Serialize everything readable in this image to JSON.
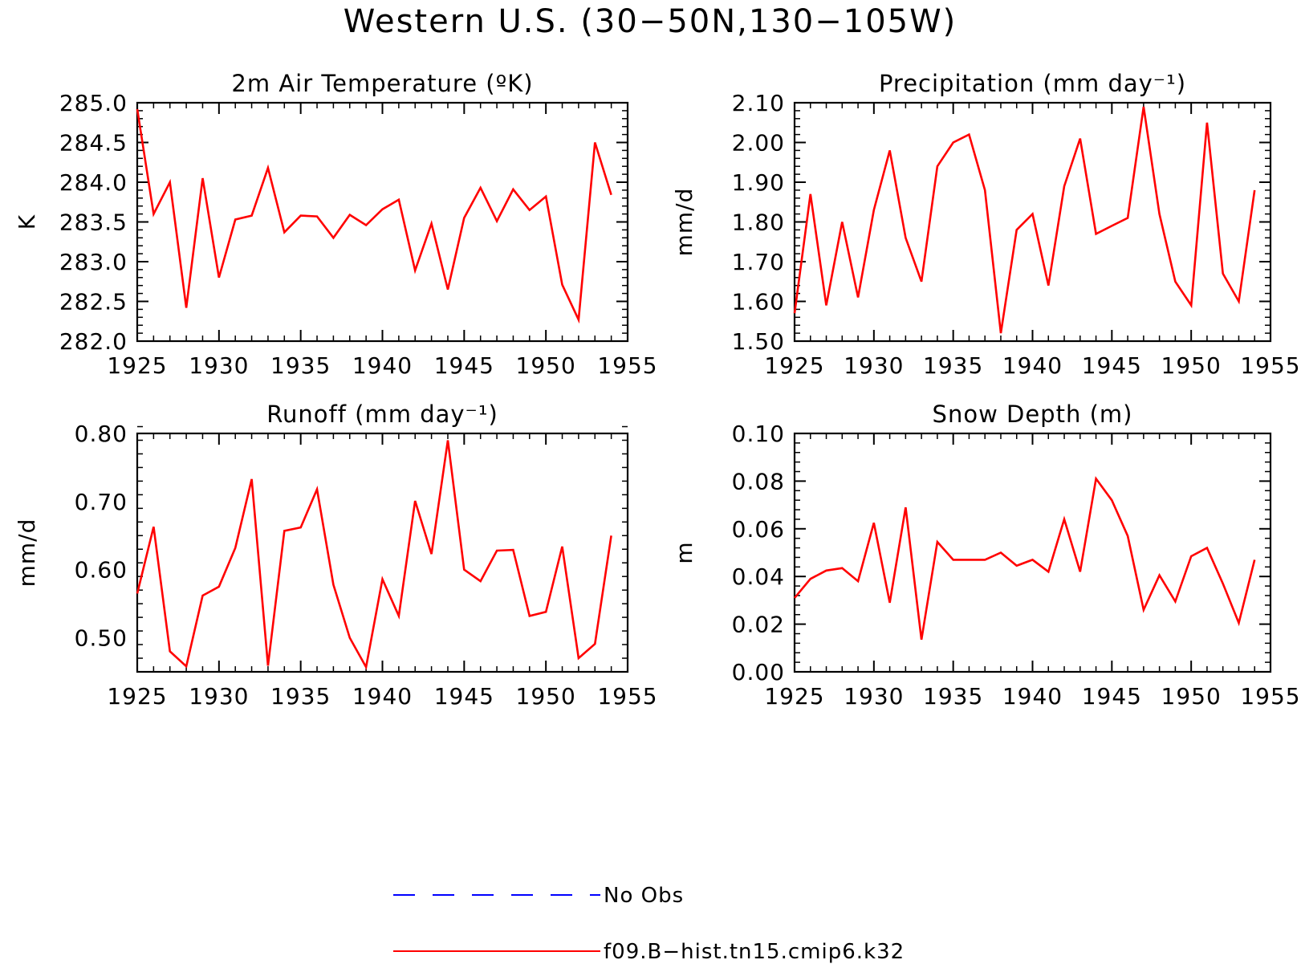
{
  "title": "Western U.S. (30−50N,130−105W)",
  "legend": {
    "entries": [
      {
        "label": "No Obs",
        "color": "#0000ff",
        "style": "dashed"
      },
      {
        "label": "f09.B−hist.tn15.cmip6.k32",
        "color": "#ff0000",
        "style": "solid"
      }
    ]
  },
  "chart_data": [
    {
      "type": "line",
      "title": "2m Air Temperature (ºK)",
      "ylabel": "K",
      "xlim": [
        1925,
        1955
      ],
      "ylim": [
        282.0,
        285.0
      ],
      "xticks": [
        1925,
        1930,
        1935,
        1940,
        1945,
        1950,
        1955
      ],
      "yticks": [
        "282.0",
        "282.5",
        "283.0",
        "283.5",
        "284.0",
        "284.5",
        "285.0"
      ],
      "grid": false,
      "series": [
        {
          "color": "#ff0000",
          "x": [
            1925,
            1926,
            1927,
            1928,
            1929,
            1930,
            1931,
            1932,
            1933,
            1934,
            1935,
            1936,
            1937,
            1938,
            1939,
            1940,
            1941,
            1942,
            1943,
            1944,
            1945,
            1946,
            1947,
            1948,
            1949,
            1950,
            1951,
            1952,
            1953,
            1954
          ],
          "values": [
            284.92,
            283.6,
            284.0,
            282.42,
            284.05,
            282.8,
            283.53,
            283.58,
            284.18,
            283.37,
            283.58,
            283.57,
            283.3,
            283.59,
            283.46,
            283.66,
            283.78,
            282.89,
            283.48,
            282.65,
            283.55,
            283.93,
            283.51,
            283.91,
            283.65,
            283.82,
            282.71,
            282.27,
            284.5,
            283.84
          ]
        }
      ]
    },
    {
      "type": "line",
      "title": "Precipitation (mm day⁻¹)",
      "ylabel": "mm/d",
      "xlim": [
        1925,
        1955
      ],
      "ylim": [
        1.5,
        2.1
      ],
      "xticks": [
        1925,
        1930,
        1935,
        1940,
        1945,
        1950,
        1955
      ],
      "yticks": [
        "1.50",
        "1.60",
        "1.70",
        "1.80",
        "1.90",
        "2.00",
        "2.10"
      ],
      "grid": false,
      "series": [
        {
          "color": "#ff0000",
          "x": [
            1925,
            1926,
            1927,
            1928,
            1929,
            1930,
            1931,
            1932,
            1933,
            1934,
            1935,
            1936,
            1937,
            1938,
            1939,
            1940,
            1941,
            1942,
            1943,
            1944,
            1945,
            1946,
            1947,
            1948,
            1949,
            1950,
            1951,
            1952,
            1953,
            1954
          ],
          "values": [
            1.57,
            1.87,
            1.59,
            1.8,
            1.61,
            1.83,
            1.98,
            1.76,
            1.65,
            1.94,
            2.0,
            2.02,
            1.88,
            1.52,
            1.78,
            1.82,
            1.64,
            1.89,
            2.01,
            1.77,
            1.79,
            1.81,
            2.09,
            1.82,
            1.65,
            1.59,
            2.05,
            1.67,
            1.6,
            1.88
          ]
        }
      ]
    },
    {
      "type": "line",
      "title": "Runoff (mm day⁻¹)",
      "ylabel": "mm/d",
      "xlim": [
        1925,
        1955
      ],
      "ylim": [
        0.45,
        0.8
      ],
      "xticks": [
        1925,
        1930,
        1935,
        1940,
        1945,
        1950,
        1955
      ],
      "yticks": [
        "0.50",
        "0.60",
        "0.70",
        "0.80"
      ],
      "grid": false,
      "series": [
        {
          "color": "#ff0000",
          "x": [
            1925,
            1926,
            1927,
            1928,
            1929,
            1930,
            1931,
            1932,
            1933,
            1934,
            1935,
            1936,
            1937,
            1938,
            1939,
            1940,
            1941,
            1942,
            1943,
            1944,
            1945,
            1946,
            1947,
            1948,
            1949,
            1950,
            1951,
            1952,
            1953,
            1954
          ],
          "values": [
            0.565,
            0.663,
            0.48,
            0.458,
            0.562,
            0.575,
            0.632,
            0.733,
            0.459,
            0.657,
            0.662,
            0.718,
            0.578,
            0.5,
            0.457,
            0.586,
            0.532,
            0.701,
            0.623,
            0.79,
            0.6,
            0.583,
            0.628,
            0.629,
            0.532,
            0.538,
            0.634,
            0.47,
            0.491,
            0.65
          ]
        }
      ]
    },
    {
      "type": "line",
      "title": "Snow Depth (m)",
      "ylabel": "m",
      "xlim": [
        1925,
        1955
      ],
      "ylim": [
        0.0,
        0.1
      ],
      "xticks": [
        1925,
        1930,
        1935,
        1940,
        1945,
        1950,
        1955
      ],
      "yticks": [
        "0.00",
        "0.02",
        "0.04",
        "0.06",
        "0.08",
        "0.10"
      ],
      "grid": false,
      "series": [
        {
          "color": "#ff0000",
          "x": [
            1925,
            1926,
            1927,
            1928,
            1929,
            1930,
            1931,
            1932,
            1933,
            1934,
            1935,
            1936,
            1937,
            1938,
            1939,
            1940,
            1941,
            1942,
            1943,
            1944,
            1945,
            1946,
            1947,
            1948,
            1949,
            1950,
            1951,
            1952,
            1953,
            1954
          ],
          "values": [
            0.031,
            0.039,
            0.0425,
            0.0435,
            0.038,
            0.0625,
            0.029,
            0.069,
            0.0135,
            0.0545,
            0.047,
            0.047,
            0.047,
            0.05,
            0.0445,
            0.047,
            0.042,
            0.064,
            0.042,
            0.081,
            0.072,
            0.057,
            0.026,
            0.0405,
            0.0295,
            0.0485,
            0.052,
            0.037,
            0.0205,
            0.047
          ]
        }
      ]
    }
  ]
}
